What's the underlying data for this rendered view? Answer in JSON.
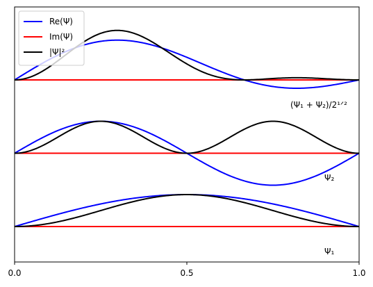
{
  "chart_data": {
    "type": "line",
    "title": "",
    "xlabel": "",
    "ylabel": "",
    "xlim": [
      0,
      1
    ],
    "xticks": [
      "0.0",
      "0.5",
      "1.0"
    ],
    "yticks_visible": false,
    "grid": false,
    "legend": {
      "placement": "top-left",
      "entries": [
        {
          "label": "Re(Ψ)",
          "color": "#0000ff"
        },
        {
          "label": "Im(Ψ)",
          "color": "#ff0000"
        },
        {
          "label": "|Ψ|²",
          "color": "#000000"
        }
      ]
    },
    "annotations": {
      "top": "(Ψ₁ + Ψ₂)/2¹ᐟ²",
      "middle": "Ψ₂",
      "bottom": "Ψ₁"
    },
    "panels": [
      {
        "name": "(Ψ₁ + Ψ₂)/2^(1/2)",
        "offset": 2,
        "series": [
          {
            "key": "re",
            "color": "#0000ff",
            "formula": "(sin(pi x) + sin(2 pi x))/sqrt(2)"
          },
          {
            "key": "im",
            "color": "#ff0000",
            "formula": "0"
          },
          {
            "key": "abs2",
            "color": "#000000",
            "formula": "((sin(pi x) + sin(2 pi x))^2)/2"
          }
        ]
      },
      {
        "name": "Ψ₂",
        "offset": 1,
        "series": [
          {
            "key": "re",
            "color": "#0000ff",
            "formula": "sin(2 pi x)"
          },
          {
            "key": "im",
            "color": "#ff0000",
            "formula": "0"
          },
          {
            "key": "abs2",
            "color": "#000000",
            "formula": "sin(2 pi x)^2"
          }
        ]
      },
      {
        "name": "Ψ₁",
        "offset": 0,
        "series": [
          {
            "key": "re",
            "color": "#0000ff",
            "formula": "sin(pi x)"
          },
          {
            "key": "im",
            "color": "#ff0000",
            "formula": "0"
          },
          {
            "key": "abs2",
            "color": "#000000",
            "formula": "sin(pi x)^2"
          }
        ]
      }
    ]
  }
}
